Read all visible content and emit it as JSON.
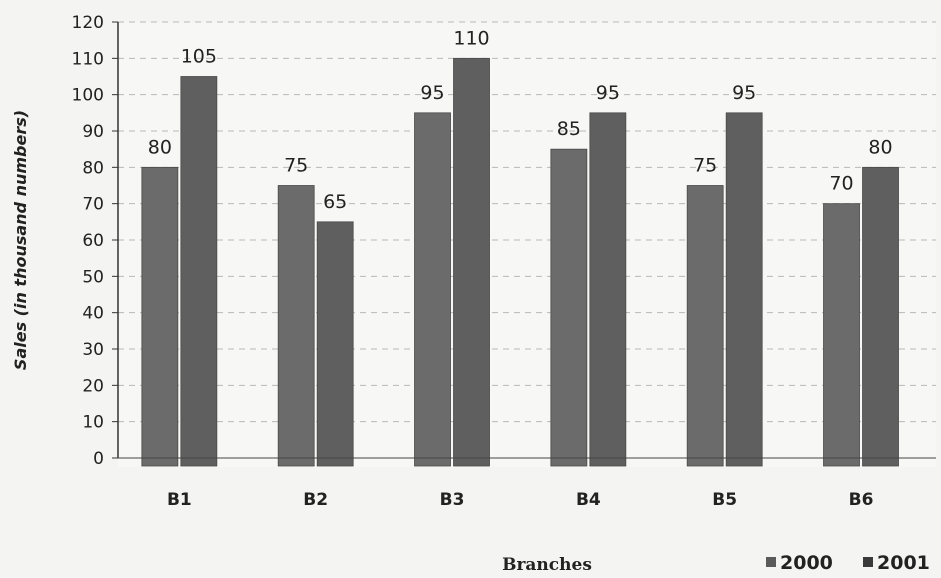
{
  "chart_data": {
    "type": "bar",
    "title": "",
    "xlabel": "Branches",
    "ylabel": "Sales (in thousand numbers)",
    "categories": [
      "B1",
      "B2",
      "B3",
      "B4",
      "B5",
      "B6"
    ],
    "series": [
      {
        "name": "2000",
        "values": [
          80,
          75,
          95,
          85,
          75,
          70
        ],
        "color": "#6b6b6b"
      },
      {
        "name": "2001",
        "values": [
          105,
          65,
          110,
          95,
          95,
          80
        ],
        "color": "#5e5e5e"
      }
    ],
    "ylim": [
      0,
      120
    ],
    "yticks": [
      0,
      10,
      20,
      30,
      40,
      50,
      60,
      70,
      80,
      90,
      100,
      110,
      120
    ],
    "grid": "dashed horizontal",
    "legend": "bottom-right",
    "data_labels": true
  }
}
